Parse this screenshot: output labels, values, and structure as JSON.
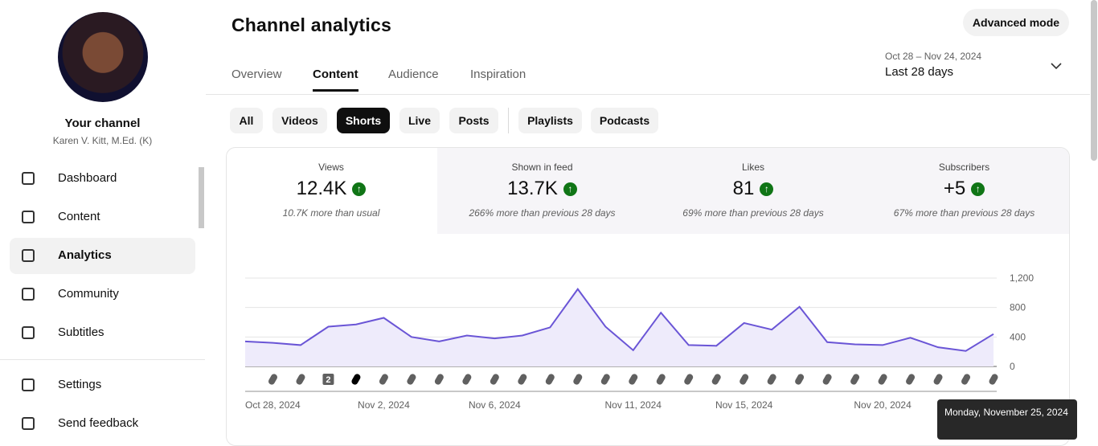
{
  "sidebar": {
    "channel_title": "Your channel",
    "channel_name": "Karen V. Kitt, M.Ed. (K)",
    "nav": [
      "Dashboard",
      "Content",
      "Analytics",
      "Community",
      "Subtitles"
    ],
    "active_nav": 2,
    "bottom": [
      "Settings",
      "Send feedback"
    ]
  },
  "header": {
    "title": "Channel analytics",
    "advanced": "Advanced mode",
    "tabs": [
      "Overview",
      "Content",
      "Audience",
      "Inspiration"
    ],
    "active_tab": 1,
    "date_range": "Oct 28 – Nov 24, 2024",
    "period": "Last 28 days"
  },
  "chips": [
    "All",
    "Videos",
    "Shorts",
    "Live",
    "Posts",
    "Playlists",
    "Podcasts"
  ],
  "active_chip": 2,
  "metrics": [
    {
      "label": "Views",
      "value": "12.4K",
      "note": "10.7K more than usual"
    },
    {
      "label": "Shown in feed",
      "value": "13.7K",
      "note": "266% more than previous 28 days"
    },
    {
      "label": "Likes",
      "value": "81",
      "note": "69% more than previous 28 days"
    },
    {
      "label": "Subscribers",
      "value": "+5",
      "note": "67% more than previous 28 days"
    }
  ],
  "chart_data": {
    "type": "line",
    "categories": [
      "Oct 28, 2024",
      null,
      null,
      null,
      null,
      "Nov 2, 2024",
      null,
      null,
      null,
      "Nov 6, 2024",
      null,
      null,
      null,
      null,
      "Nov 11, 2024",
      null,
      null,
      null,
      "Nov 15, 2024",
      null,
      null,
      null,
      null,
      "Nov 20, 2024",
      null,
      null,
      null,
      null
    ],
    "values": [
      340,
      320,
      290,
      540,
      570,
      660,
      400,
      340,
      420,
      380,
      420,
      530,
      1050,
      540,
      220,
      730,
      290,
      280,
      590,
      500,
      810,
      330,
      300,
      290,
      390,
      260,
      210,
      440
    ],
    "color": "#6a55d6",
    "fill": "#eeebfb",
    "ylim": [
      0,
      1200
    ],
    "yticks": [
      0,
      400,
      800,
      {
        "value": 1200,
        "label": "1,200"
      }
    ],
    "grid": true,
    "badge": "2",
    "tooltip": "Monday, November 25, 2024"
  }
}
